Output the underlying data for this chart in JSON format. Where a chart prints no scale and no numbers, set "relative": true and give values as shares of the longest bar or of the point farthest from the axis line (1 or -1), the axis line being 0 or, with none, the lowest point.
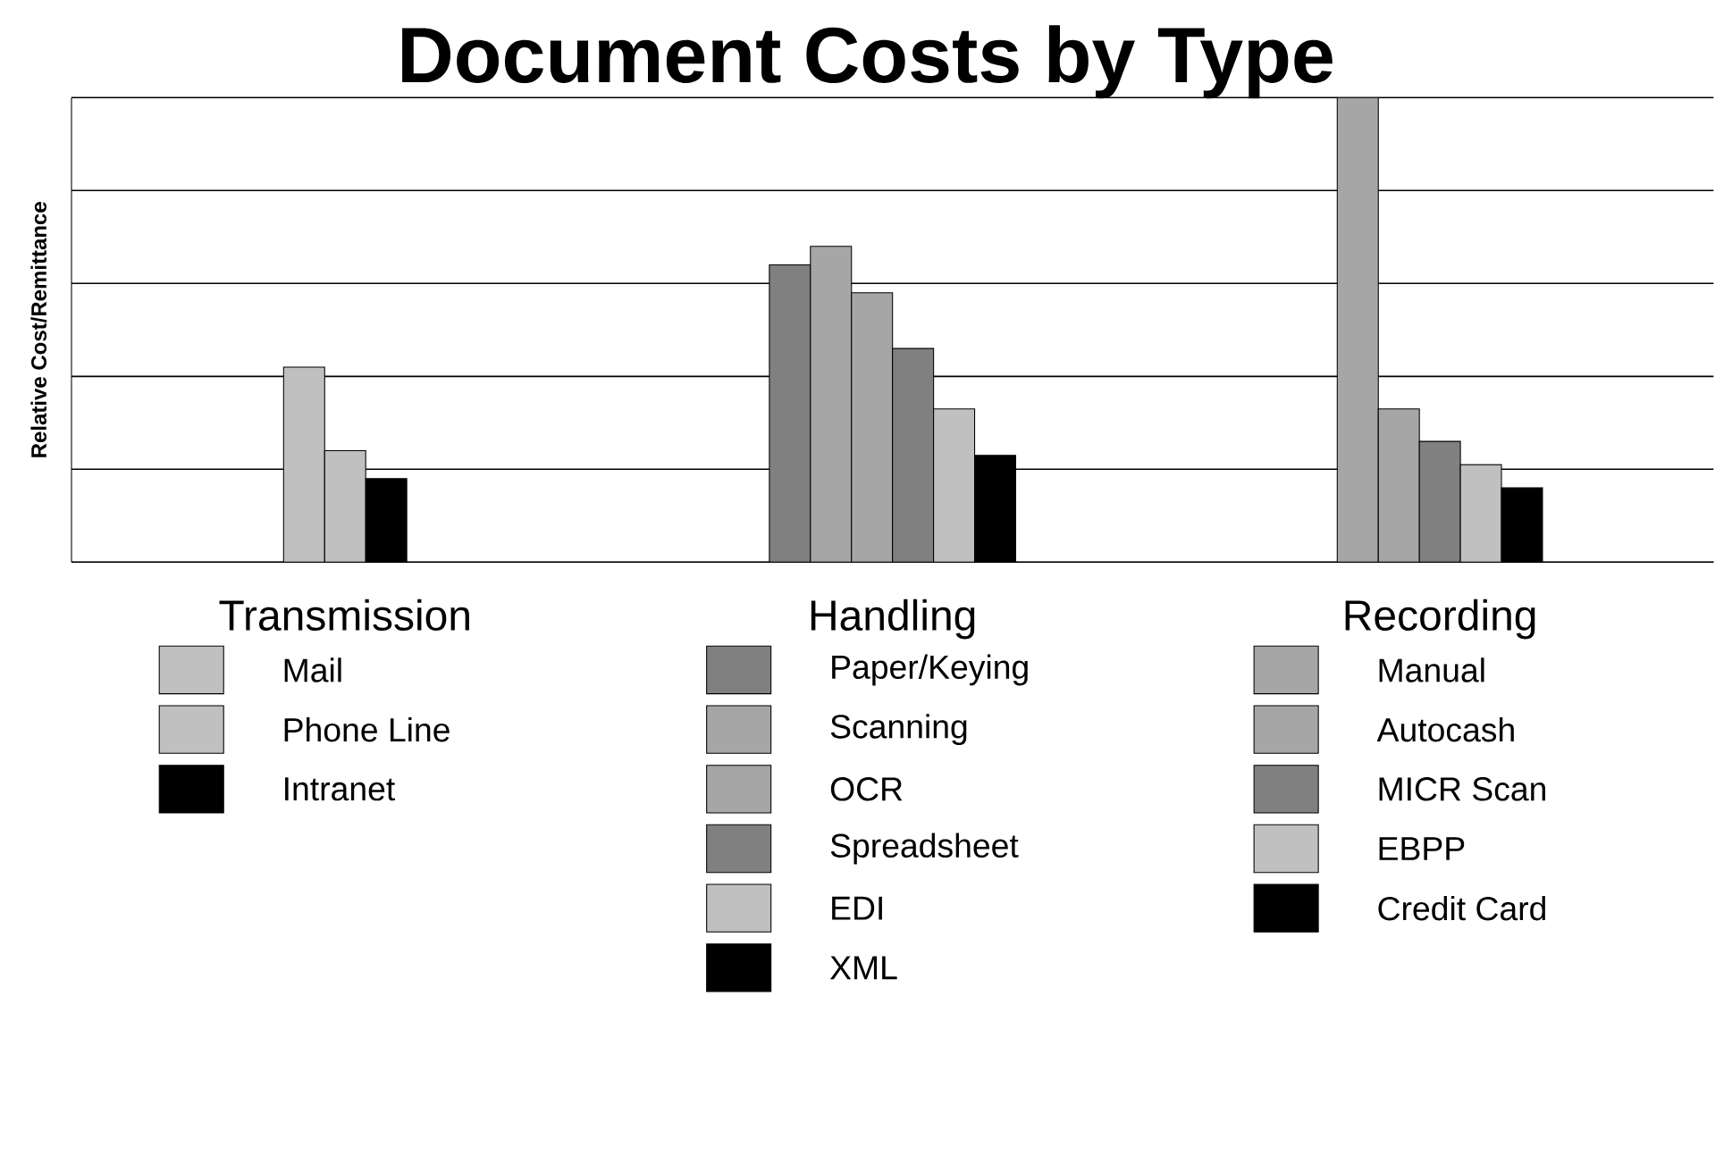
{
  "chart_data": {
    "type": "bar",
    "title": "Document Costs by Type",
    "ylabel": "Relative Cost/Remittance",
    "relative": true,
    "grid": "y",
    "legend": "bottom",
    "categories": [
      "Transmission",
      "Handling",
      "Recording"
    ],
    "series": [
      {
        "name": "Mail",
        "color": "#c0c0c0",
        "values": [
          0.42,
          null,
          null
        ]
      },
      {
        "name": "Phone Line",
        "color": "#c0c0c0",
        "values": [
          0.24,
          null,
          null
        ]
      },
      {
        "name": "Intranet",
        "color": "#000000",
        "values": [
          0.18,
          null,
          null
        ]
      },
      {
        "name": "Paper/Keying",
        "color": "#808080",
        "values": [
          null,
          0.64,
          null
        ]
      },
      {
        "name": "Scanning",
        "color": "#a6a6a6",
        "values": [
          null,
          0.68,
          null
        ]
      },
      {
        "name": "OCR",
        "color": "#a6a6a6",
        "values": [
          null,
          0.58,
          null
        ]
      },
      {
        "name": "Spreadsheet",
        "color": "#808080",
        "values": [
          null,
          0.46,
          null
        ]
      },
      {
        "name": "EDI",
        "color": "#c0c0c0",
        "values": [
          null,
          0.33,
          null
        ]
      },
      {
        "name": "XML",
        "color": "#000000",
        "values": [
          null,
          0.23,
          null
        ]
      },
      {
        "name": "Manual",
        "color": "#a6a6a6",
        "values": [
          null,
          null,
          1
        ]
      },
      {
        "name": "Autocash",
        "color": "#a6a6a6",
        "values": [
          null,
          null,
          0.33
        ]
      },
      {
        "name": "MICR Scan",
        "color": "#808080",
        "values": [
          null,
          null,
          0.26
        ]
      },
      {
        "name": "EBPP",
        "color": "#c0c0c0",
        "values": [
          null,
          null,
          0.21
        ]
      },
      {
        "name": "Credit Card",
        "color": "#000000",
        "values": [
          null,
          null,
          0.16
        ]
      }
    ]
  }
}
